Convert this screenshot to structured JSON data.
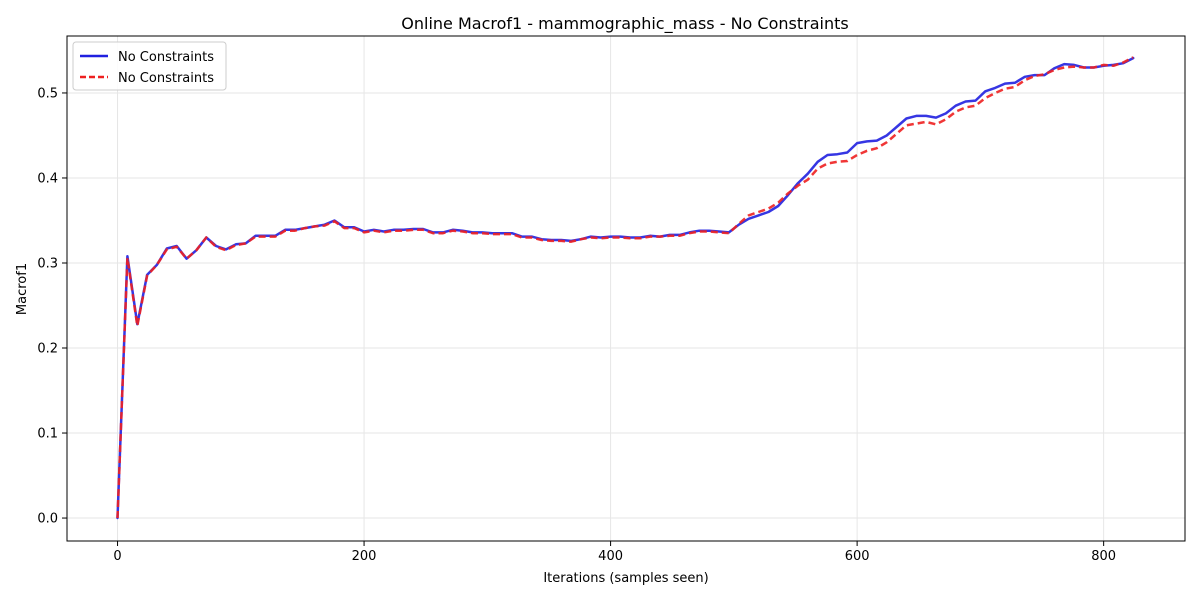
{
  "chart_data": {
    "type": "line",
    "title": "Online Macrof1 - mammographic_mass - No Constraints",
    "xlabel": "Iterations (samples seen)",
    "ylabel": "Macrof1",
    "xlim": [
      -41,
      866
    ],
    "ylim": [
      -0.027,
      0.567
    ],
    "xticks": [
      0,
      200,
      400,
      600,
      800
    ],
    "yticks": [
      0.0,
      0.1,
      0.2,
      0.3,
      0.4,
      0.5
    ],
    "xtick_labels": [
      "0",
      "200",
      "400",
      "600",
      "800"
    ],
    "ytick_labels": [
      "0.0",
      "0.1",
      "0.2",
      "0.3",
      "0.4",
      "0.5"
    ],
    "grid": true,
    "legend_position": "upper-left",
    "series": [
      {
        "name": "No Constraints",
        "color": "#2020e0",
        "style": "solid",
        "x": [
          0,
          8,
          16,
          24,
          32,
          40,
          48,
          56,
          64,
          72,
          80,
          88,
          96,
          104,
          112,
          120,
          128,
          136,
          144,
          152,
          160,
          168,
          176,
          184,
          192,
          200,
          208,
          216,
          224,
          232,
          240,
          248,
          256,
          264,
          272,
          280,
          288,
          296,
          304,
          312,
          320,
          328,
          336,
          344,
          352,
          360,
          368,
          376,
          384,
          392,
          400,
          408,
          416,
          424,
          432,
          440,
          448,
          456,
          464,
          472,
          480,
          488,
          496,
          504,
          512,
          520,
          528,
          536,
          544,
          552,
          560,
          568,
          576,
          584,
          592,
          600,
          608,
          616,
          624,
          632,
          640,
          648,
          656,
          664,
          672,
          680,
          688,
          696,
          704,
          712,
          720,
          728,
          736,
          744,
          752,
          760,
          768,
          776,
          784,
          792,
          800,
          808,
          816,
          824
        ],
        "y": [
          0.0,
          0.308,
          0.228,
          0.286,
          0.298,
          0.317,
          0.32,
          0.305,
          0.315,
          0.33,
          0.32,
          0.316,
          0.322,
          0.323,
          0.332,
          0.332,
          0.332,
          0.339,
          0.339,
          0.341,
          0.343,
          0.345,
          0.35,
          0.342,
          0.342,
          0.337,
          0.339,
          0.337,
          0.339,
          0.339,
          0.34,
          0.34,
          0.336,
          0.336,
          0.339,
          0.338,
          0.336,
          0.336,
          0.335,
          0.335,
          0.335,
          0.331,
          0.331,
          0.328,
          0.327,
          0.327,
          0.326,
          0.328,
          0.331,
          0.33,
          0.331,
          0.331,
          0.33,
          0.33,
          0.332,
          0.331,
          0.333,
          0.333,
          0.336,
          0.338,
          0.338,
          0.337,
          0.336,
          0.345,
          0.352,
          0.356,
          0.36,
          0.367,
          0.38,
          0.394,
          0.405,
          0.419,
          0.427,
          0.428,
          0.43,
          0.441,
          0.443,
          0.444,
          0.45,
          0.46,
          0.47,
          0.473,
          0.473,
          0.471,
          0.476,
          0.485,
          0.49,
          0.491,
          0.502,
          0.506,
          0.511,
          0.512,
          0.519,
          0.521,
          0.521,
          0.529,
          0.534,
          0.533,
          0.53,
          0.53,
          0.532,
          0.533,
          0.535,
          0.541
        ]
      },
      {
        "name": "No Constraints",
        "color": "#ee2020",
        "style": "dashed",
        "x": [
          0,
          8,
          16,
          24,
          32,
          40,
          48,
          56,
          64,
          72,
          80,
          88,
          96,
          104,
          112,
          120,
          128,
          136,
          144,
          152,
          160,
          168,
          176,
          184,
          192,
          200,
          208,
          216,
          224,
          232,
          240,
          248,
          256,
          264,
          272,
          280,
          288,
          296,
          304,
          312,
          320,
          328,
          336,
          344,
          352,
          360,
          368,
          376,
          384,
          392,
          400,
          408,
          416,
          424,
          432,
          440,
          448,
          456,
          464,
          472,
          480,
          488,
          496,
          504,
          512,
          520,
          528,
          536,
          544,
          552,
          560,
          568,
          576,
          584,
          592,
          600,
          608,
          616,
          624,
          632,
          640,
          648,
          656,
          664,
          672,
          680,
          688,
          696,
          704,
          712,
          720,
          728,
          736,
          744,
          752,
          760,
          768,
          776,
          784,
          792,
          800,
          808,
          816,
          824
        ],
        "y": [
          0.0,
          0.306,
          0.226,
          0.285,
          0.298,
          0.316,
          0.319,
          0.305,
          0.315,
          0.33,
          0.319,
          0.315,
          0.321,
          0.323,
          0.331,
          0.331,
          0.331,
          0.338,
          0.338,
          0.341,
          0.343,
          0.344,
          0.349,
          0.341,
          0.341,
          0.336,
          0.338,
          0.336,
          0.338,
          0.338,
          0.339,
          0.339,
          0.335,
          0.335,
          0.338,
          0.337,
          0.335,
          0.335,
          0.334,
          0.334,
          0.334,
          0.33,
          0.33,
          0.327,
          0.326,
          0.326,
          0.325,
          0.328,
          0.33,
          0.329,
          0.33,
          0.33,
          0.329,
          0.329,
          0.331,
          0.331,
          0.332,
          0.332,
          0.335,
          0.337,
          0.337,
          0.336,
          0.335,
          0.346,
          0.356,
          0.36,
          0.364,
          0.371,
          0.382,
          0.391,
          0.398,
          0.411,
          0.417,
          0.419,
          0.42,
          0.427,
          0.432,
          0.435,
          0.442,
          0.452,
          0.462,
          0.464,
          0.466,
          0.463,
          0.469,
          0.478,
          0.483,
          0.485,
          0.494,
          0.5,
          0.505,
          0.507,
          0.515,
          0.52,
          0.522,
          0.527,
          0.53,
          0.531,
          0.53,
          0.53,
          0.533,
          0.532,
          0.536,
          0.542
        ]
      }
    ]
  }
}
